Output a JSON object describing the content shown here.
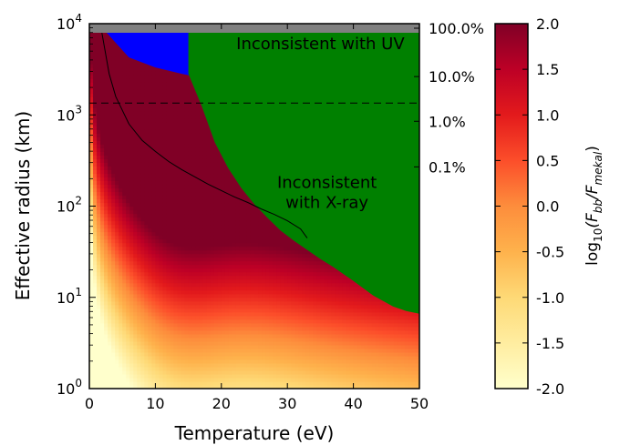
{
  "chart_data": {
    "type": "heatmap",
    "xlabel": "Temperature (eV)",
    "ylabel": "Effective radius (km)",
    "xlim": [
      0,
      50
    ],
    "ylim_log10": [
      0,
      4
    ],
    "y_scale": "log",
    "x_ticks": [
      {
        "v": 0,
        "label": "0"
      },
      {
        "v": 10,
        "label": "10"
      },
      {
        "v": 20,
        "label": "20"
      },
      {
        "v": 30,
        "label": "30"
      },
      {
        "v": 40,
        "label": "40"
      },
      {
        "v": 50,
        "label": "50"
      }
    ],
    "y_ticks": [
      {
        "e": 0,
        "base": "10",
        "exp": "0"
      },
      {
        "e": 1,
        "base": "10",
        "exp": "1"
      },
      {
        "e": 2,
        "base": "10",
        "exp": "2"
      },
      {
        "e": 3,
        "base": "10",
        "exp": "3"
      },
      {
        "e": 4,
        "base": "10",
        "exp": "4"
      }
    ],
    "colorbar": {
      "label": "log10(F_bb/F_mekal)",
      "label_parts": {
        "pre": "log",
        "pre_sub": "10",
        "open": "(F",
        "sub1": "bb",
        "mid": "/F",
        "sub2": "mekal",
        "close": ")"
      },
      "range": [
        -2.0,
        2.0
      ],
      "colors": [
        "#ffffcc",
        "#ffeda0",
        "#fed976",
        "#feb24c",
        "#fd8d3c",
        "#fc4e2a",
        "#e31a1c",
        "#bd0026",
        "#800026"
      ],
      "ticks": [
        {
          "v": 2.0,
          "label": "2.0"
        },
        {
          "v": 1.5,
          "label": "1.5"
        },
        {
          "v": 1.0,
          "label": "1.0"
        },
        {
          "v": 0.5,
          "label": "0.5"
        },
        {
          "v": 0.0,
          "label": "0.0"
        },
        {
          "v": -0.5,
          "label": "-0.5"
        },
        {
          "v": -1.0,
          "label": "-1.0"
        },
        {
          "v": -1.5,
          "label": "-1.5"
        },
        {
          "v": -2.0,
          "label": "-2.0"
        }
      ]
    },
    "regions": [
      {
        "name": "Inconsistent with UV",
        "color": "#0000ff",
        "boundary_x": [
          2,
          6,
          10,
          14,
          18,
          20,
          24,
          28,
          32,
          36,
          40,
          44,
          48,
          50
        ],
        "boundary_log10_radius": [
          3.95,
          3.63,
          3.52,
          3.45,
          3.39,
          3.35,
          3.3,
          3.26,
          3.22,
          3.19,
          3.16,
          3.13,
          3.09,
          3.08
        ]
      },
      {
        "name": "Inconsistent with X-ray",
        "color": "#008000",
        "boundary_x": [
          15,
          17,
          19,
          21,
          23,
          25,
          27,
          29,
          31,
          33,
          35,
          37,
          40,
          43,
          46,
          48,
          50
        ],
        "boundary_log10_radius": [
          3.45,
          3.1,
          2.7,
          2.42,
          2.2,
          2.02,
          1.87,
          1.73,
          1.62,
          1.52,
          1.42,
          1.33,
          1.18,
          1.02,
          0.9,
          0.85,
          0.82
        ]
      },
      {
        "name": "top band",
        "color": "#808080",
        "log10_radius_from": 3.9
      }
    ],
    "region_labels": [
      {
        "lines": [
          "Inconsistent with UV"
        ],
        "x": 35,
        "log10_radius": 3.72
      },
      {
        "lines": [
          "Inconsistent",
          "with X-ray"
        ],
        "x": 36,
        "log10_radius": 2.2
      }
    ],
    "curve": {
      "x": [
        1.9,
        3,
        4,
        6,
        8,
        10,
        12,
        14,
        16,
        18,
        20,
        22,
        24,
        26,
        28,
        30,
        32,
        33
      ],
      "log10_radius": [
        3.9,
        3.45,
        3.2,
        2.9,
        2.72,
        2.6,
        2.49,
        2.4,
        2.32,
        2.24,
        2.17,
        2.1,
        2.04,
        1.97,
        1.91,
        1.84,
        1.75,
        1.65
      ]
    },
    "dashed_line": {
      "log10_radius": 3.13
    },
    "right_axis_ticks": [
      {
        "label": "100.0%",
        "log10_radius": 3.95
      },
      {
        "label": "10.0%",
        "log10_radius": 3.42
      },
      {
        "label": "1.0%",
        "log10_radius": 2.93
      },
      {
        "label": "0.1%",
        "log10_radius": 2.43
      }
    ]
  }
}
